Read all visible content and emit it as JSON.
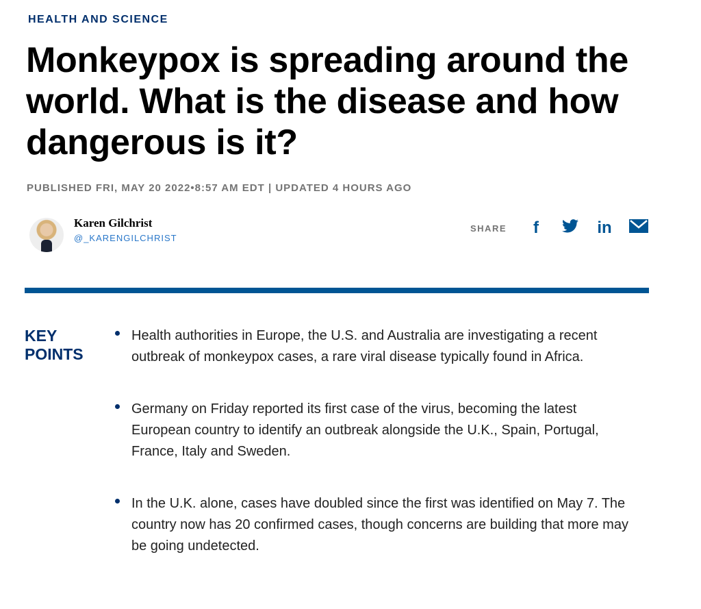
{
  "section": "HEALTH AND SCIENCE",
  "headline": "Monkeypox is spreading around the world. What is the disease and how dangerous is it?",
  "meta": "PUBLISHED FRI, MAY 20 2022•8:57 AM EDT | UPDATED 4 HOURS AGO",
  "author": {
    "name": "Karen Gilchrist",
    "handle": "@_KARENGILCHRIST"
  },
  "share": {
    "label": "SHARE",
    "icons": {
      "facebook": "f",
      "twitter": "🐦",
      "linkedin": "in",
      "email": "✉"
    }
  },
  "key_points": {
    "title": "KEY POINTS",
    "items": [
      "Health authorities in Europe, the U.S. and Australia are investigating a recent outbreak of monkeypox cases, a rare viral disease typically found in Africa.",
      "Germany on Friday reported its first case of the virus, becoming the latest European country to identify an outbreak alongside the U.K., Spain, Portugal, France, Italy and Sweden.",
      "In the U.K. alone, cases have doubled since the first was identified on May 7. The country now has 20 confirmed cases, though concerns are building that more may be going undetected."
    ]
  }
}
